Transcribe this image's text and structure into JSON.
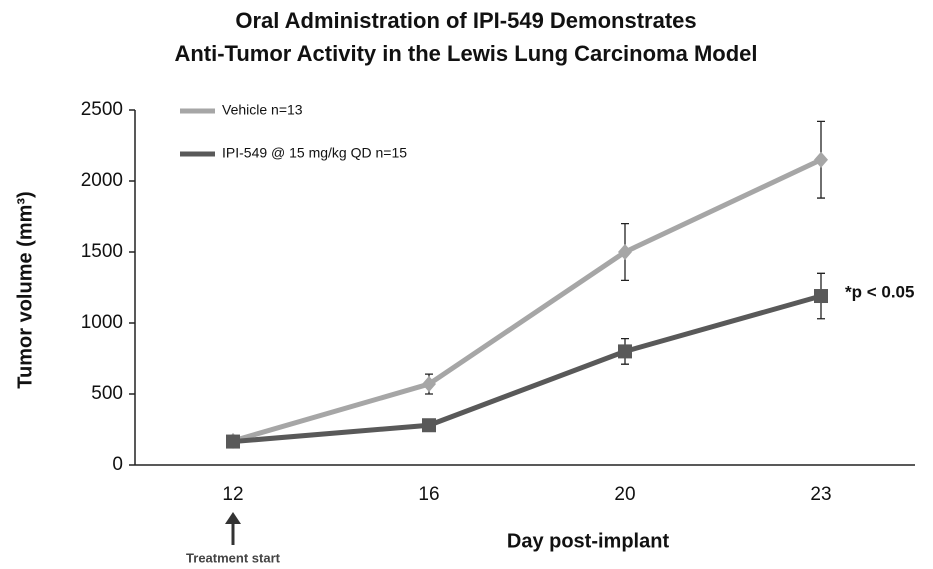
{
  "chart_data": {
    "type": "line",
    "title": [
      "Oral Administration of IPI-549 Demonstrates",
      "Anti-Tumor Activity in the Lewis Lung Carcinoma Model"
    ],
    "x_label": "Day post-implant",
    "y_label": "Tumor volume (mm³)",
    "categories": [
      "12",
      "16",
      "20",
      "23"
    ],
    "series": [
      {
        "name": "Vehicle n=13",
        "color": "#a6a6a6",
        "marker": "diamond",
        "values": [
          170,
          570,
          1500,
          2150
        ],
        "errors": [
          0,
          70,
          200,
          270
        ]
      },
      {
        "name": "IPI-549 @ 15 mg/kg QD n=15",
        "color": "#595959",
        "marker": "square",
        "values": [
          165,
          280,
          800,
          1190
        ],
        "errors": [
          0,
          20,
          90,
          160
        ]
      }
    ],
    "ylim": [
      0,
      2500
    ],
    "yticks": [
      0,
      500,
      1000,
      1500,
      2000,
      2500
    ],
    "annotations": [
      "*p < 0.05",
      "Treatment start"
    ],
    "legend": "upper left",
    "grid": false
  }
}
